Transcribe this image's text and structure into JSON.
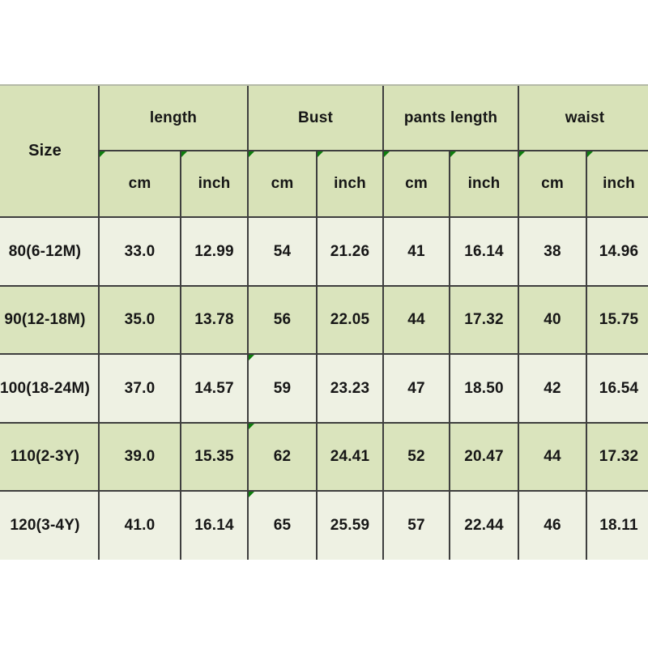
{
  "colors": {
    "page_background": "#ffffff",
    "header_fill": "#d8e2b8",
    "row_alt_fill": "#dae4bd",
    "row_fill": "#eef1e3",
    "grid_line": "#3e3e3e",
    "corner_flag_green": "#0d7d0d",
    "text": "#161616"
  },
  "chart_data": {
    "type": "table",
    "corner_header": "Size",
    "column_groups": [
      "length",
      "Bust",
      "pants length",
      "waist"
    ],
    "unit_headers": [
      "cm",
      "inch",
      "cm",
      "inch",
      "cm",
      "inch",
      "cm",
      "inch"
    ],
    "columns": [
      "Size",
      "length cm",
      "length inch",
      "Bust cm",
      "Bust inch",
      "pants length cm",
      "pants length inch",
      "waist cm",
      "waist inch"
    ],
    "rows": [
      {
        "cells": [
          "80(6-12M)",
          "33.0",
          "12.99",
          "54",
          "21.26",
          "41",
          "16.14",
          "38",
          "14.96"
        ]
      },
      {
        "cells": [
          "90(12-18M)",
          "35.0",
          "13.78",
          "56",
          "22.05",
          "44",
          "17.32",
          "40",
          "15.75"
        ]
      },
      {
        "cells": [
          "100(18-24M)",
          "37.0",
          "14.57",
          "59",
          "23.23",
          "47",
          "18.50",
          "42",
          "16.54"
        ]
      },
      {
        "cells": [
          "110(2-3Y)",
          "39.0",
          "15.35",
          "62",
          "24.41",
          "52",
          "20.47",
          "44",
          "17.32"
        ]
      },
      {
        "cells": [
          "120(3-4Y)",
          "41.0",
          "16.14",
          "65",
          "25.59",
          "57",
          "22.44",
          "46",
          "18.11"
        ]
      }
    ],
    "flagged_cells_note": "green corner flags on all unit header cells and on Bust cm cells of rows 100(18-24M), 110(2-3Y), 120(3-4Y)"
  }
}
